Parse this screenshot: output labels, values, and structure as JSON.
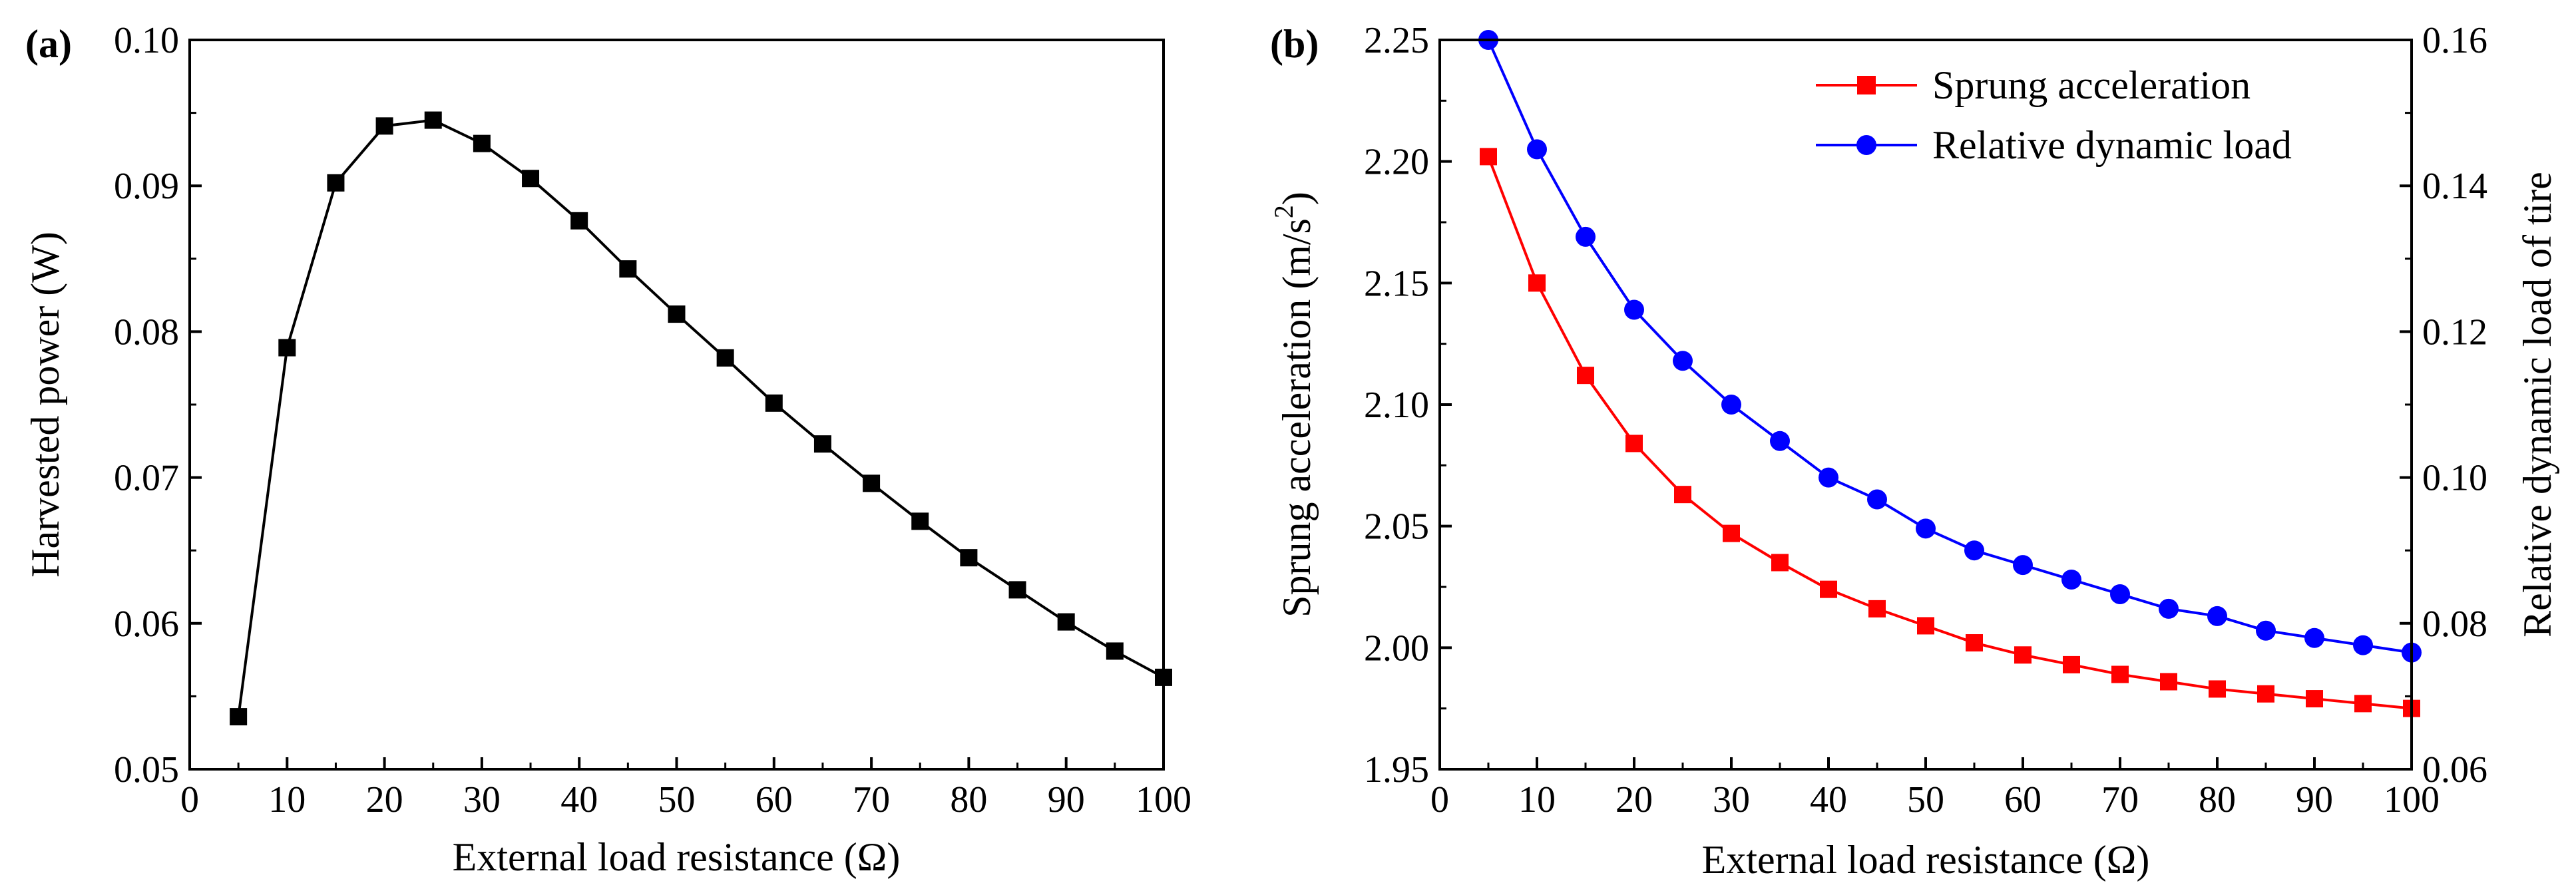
{
  "chart_data": [
    {
      "type": "line",
      "panel_label": "(a)",
      "title": "",
      "xlabel": "External load resistance (Ω)",
      "ylabel": "Harvested power (W)",
      "xlim": [
        0,
        100
      ],
      "ylim": [
        0.05,
        0.1
      ],
      "xticks": [
        "0",
        "10",
        "20",
        "30",
        "40",
        "50",
        "60",
        "70",
        "80",
        "90",
        "100"
      ],
      "yticks": [
        "0.05",
        "0.06",
        "0.07",
        "0.08",
        "0.09",
        "0.10"
      ],
      "x": [
        5,
        10,
        15,
        20,
        25,
        30,
        35,
        40,
        45,
        50,
        55,
        60,
        65,
        70,
        75,
        80,
        85,
        90,
        95,
        100
      ],
      "series": [
        {
          "name": "Harvested power",
          "color": "#000000",
          "marker": "square",
          "values": [
            0.0536,
            0.0789,
            0.0902,
            0.0941,
            0.0945,
            0.0929,
            0.0905,
            0.0876,
            0.0843,
            0.0812,
            0.0782,
            0.0751,
            0.0723,
            0.0696,
            0.067,
            0.0645,
            0.0623,
            0.0601,
            0.0581,
            0.0563
          ]
        }
      ]
    },
    {
      "type": "line",
      "panel_label": "(b)",
      "title": "",
      "xlabel": "External load resistance (Ω)",
      "ylabel_left": "Sprung acceleration (m/s",
      "ylabel_left_sup": "2",
      "ylabel_left_end": ")",
      "ylabel_right": "Relative dynamic load of tire",
      "xlim": [
        0,
        100
      ],
      "ylim_left": [
        1.95,
        2.25
      ],
      "ylim_right": [
        0.06,
        0.16
      ],
      "xticks": [
        "0",
        "10",
        "20",
        "30",
        "40",
        "50",
        "60",
        "70",
        "80",
        "90",
        "100"
      ],
      "yticks_left": [
        "1.95",
        "2.00",
        "2.05",
        "2.10",
        "2.15",
        "2.20",
        "2.25"
      ],
      "yticks_right": [
        "0.06",
        "0.08",
        "0.10",
        "0.12",
        "0.14",
        "0.16"
      ],
      "x": [
        5,
        10,
        15,
        20,
        25,
        30,
        35,
        40,
        45,
        50,
        55,
        60,
        65,
        70,
        75,
        80,
        85,
        90,
        95,
        100
      ],
      "legend_position": "top-right",
      "series": [
        {
          "name": "Sprung acceleration",
          "axis": "left",
          "color": "#ff0000",
          "marker": "square",
          "values": [
            2.202,
            2.15,
            2.112,
            2.084,
            2.063,
            2.047,
            2.035,
            2.024,
            2.016,
            2.009,
            2.002,
            1.997,
            1.993,
            1.989,
            1.986,
            1.983,
            1.981,
            1.979,
            1.977,
            1.975
          ]
        },
        {
          "name": "Relative dynamic load",
          "axis": "right",
          "color": "#0000ff",
          "marker": "circle",
          "values": [
            0.16,
            0.145,
            0.133,
            0.123,
            0.116,
            0.11,
            0.105,
            0.1,
            0.097,
            0.093,
            0.09,
            0.088,
            0.086,
            0.084,
            0.082,
            0.081,
            0.079,
            0.078,
            0.077,
            0.076
          ]
        }
      ]
    }
  ]
}
